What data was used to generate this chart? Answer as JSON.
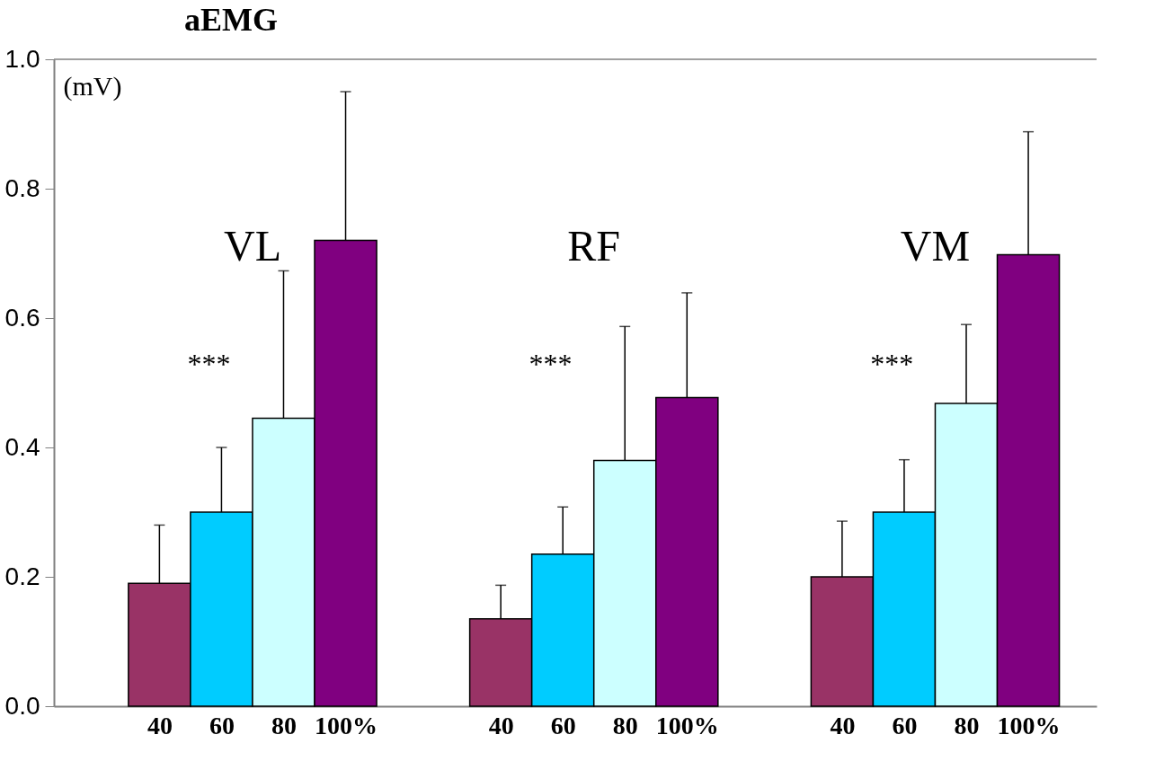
{
  "chart_data": {
    "type": "bar",
    "title": "aEMG",
    "ylabel": "(mV)",
    "categories": [
      "40",
      "60",
      "80",
      "100%",
      "40",
      "60",
      "80",
      "100%",
      "40",
      "60",
      "80",
      "100%"
    ],
    "values": [
      0.19,
      0.3,
      0.445,
      0.72,
      0.135,
      0.235,
      0.38,
      0.477,
      0.2,
      0.3,
      0.468,
      0.698
    ],
    "colors": [
      "#993366",
      "#00ccff",
      "#ccffff",
      "#800080",
      "#993366",
      "#00ccff",
      "#ccffff",
      "#800080",
      "#993366",
      "#00ccff",
      "#ccffff",
      "#800080"
    ],
    "errors": [
      [
        0.19,
        0.28
      ],
      [
        0.3,
        0.4
      ],
      [
        0.445,
        0.673
      ],
      [
        0.72,
        0.95
      ],
      [
        0.135,
        0.187
      ],
      [
        0.235,
        0.308
      ],
      [
        0.38,
        0.587
      ],
      [
        0.477,
        0.639
      ],
      [
        0.2,
        0.286
      ],
      [
        0.3,
        0.381
      ],
      [
        0.468,
        0.59
      ],
      [
        0.698,
        0.888
      ]
    ],
    "annotations": [
      "VL",
      "RF",
      "VM",
      "***",
      "***",
      "***"
    ],
    "ylim": [
      0,
      1.0
    ],
    "yticks": [
      {
        "value": 0,
        "label": "0.0"
      },
      0.2,
      0.4,
      0.6,
      0.8,
      {
        "value": 1.0,
        "label": "1.0"
      }
    ],
    "grid": false
  }
}
